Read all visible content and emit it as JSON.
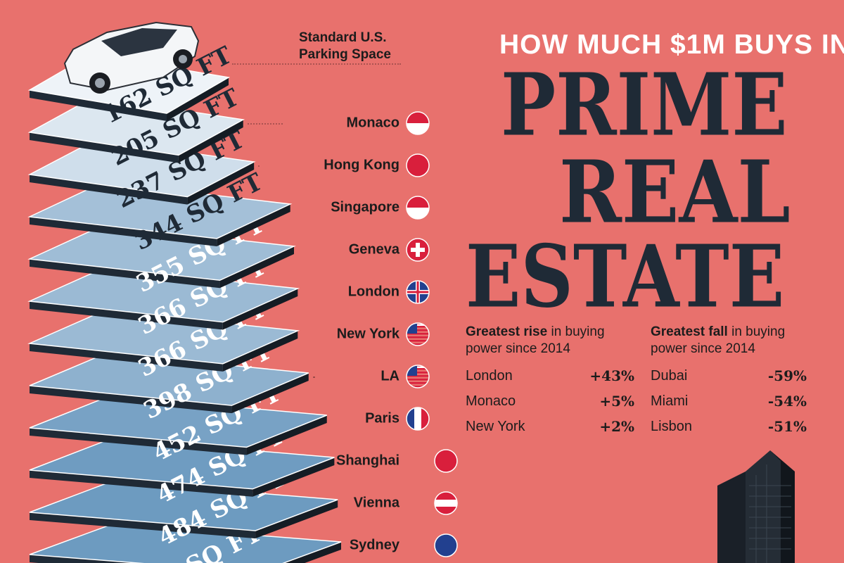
{
  "header": {
    "subtitle": "HOW MUCH $1M BUYS IN",
    "title_lines": [
      "PRIME",
      "REAL",
      "ESTATE"
    ]
  },
  "reference": {
    "label": "Standard U.S.\nParking Space",
    "value_text": "162 SQ FT",
    "icon": "car-icon"
  },
  "chart_data": {
    "type": "bar",
    "unit": "SQ FT",
    "categories": [
      "Standard U.S. Parking Space",
      "Monaco",
      "Hong Kong",
      "Singapore",
      "Geneva",
      "London",
      "New York",
      "LA",
      "Paris",
      "Shanghai",
      "Vienna",
      "Sydney"
    ],
    "values": [
      162,
      205,
      237,
      344,
      355,
      366,
      366,
      398,
      452,
      474,
      484,
      null
    ],
    "value_labels": [
      "162 SQ FT",
      "205 SQ FT",
      "237 SQ FT",
      "344 SQ FT",
      "355 SQ FT",
      "366 SQ FT",
      "366 SQ FT",
      "398 SQ FT",
      "452 SQ FT",
      "474 SQ FT",
      "484 SQ FT",
      "SQ FT"
    ],
    "title": "HOW MUCH $1M BUYS IN PRIME REAL ESTATE"
  },
  "cities": [
    {
      "name": "Monaco",
      "flag": "monaco-flag-icon"
    },
    {
      "name": "Hong Kong",
      "flag": "hong-kong-flag-icon"
    },
    {
      "name": "Singapore",
      "flag": "singapore-flag-icon"
    },
    {
      "name": "Geneva",
      "flag": "switzerland-flag-icon"
    },
    {
      "name": "London",
      "flag": "uk-flag-icon"
    },
    {
      "name": "New York",
      "flag": "usa-flag-icon"
    },
    {
      "name": "LA",
      "flag": "usa-flag-icon"
    },
    {
      "name": "Paris",
      "flag": "france-flag-icon"
    },
    {
      "name": "Shanghai",
      "flag": "china-flag-icon"
    },
    {
      "name": "Vienna",
      "flag": "austria-flag-icon"
    },
    {
      "name": "Sydney",
      "flag": "australia-flag-icon"
    }
  ],
  "rise": {
    "head_bold": "Greatest rise",
    "head_rest": " in buying power since 2014",
    "rows": [
      {
        "city": "London",
        "value": "+43%"
      },
      {
        "city": "Monaco",
        "value": "+5%"
      },
      {
        "city": "New York",
        "value": "+2%"
      }
    ]
  },
  "fall": {
    "head_bold": "Greatest fall",
    "head_rest": " in buying power since 2014",
    "rows": [
      {
        "city": "Dubai",
        "value": "-59%"
      },
      {
        "city": "Miami",
        "value": "-54%"
      },
      {
        "city": "Lisbon",
        "value": "-51%"
      }
    ]
  },
  "colors": {
    "background": "#e8716d",
    "title": "#1f2a36",
    "slab_top_light": "#eef3f8",
    "slab_top_dark": "#6d9bc0",
    "slab_side": "#1f2a36"
  }
}
